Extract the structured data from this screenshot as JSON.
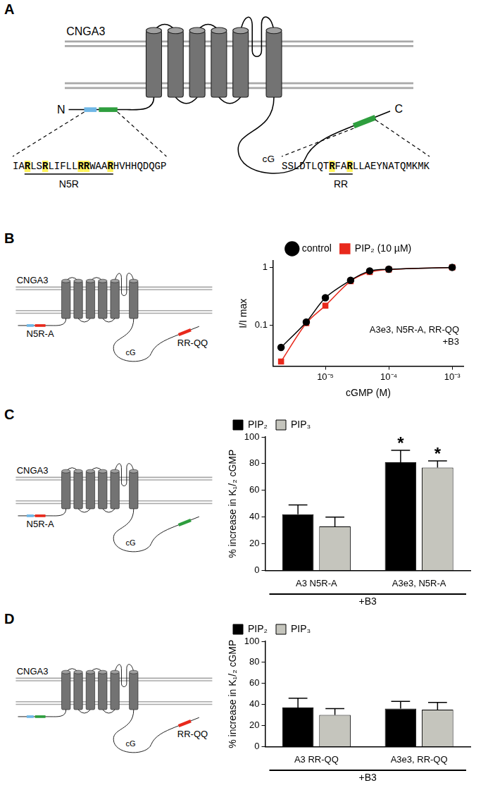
{
  "panel_letters": [
    "A",
    "B",
    "C",
    "D"
  ],
  "diagrams": {
    "A": {
      "protein": "CNGA3",
      "n_label": "N",
      "c_label": "C",
      "domain": "cG",
      "n_pre_box_color": "#6fb7e6",
      "n_box_color": "#2e9e3e",
      "c_box_color": "#2e9e3e",
      "n_sequence": [
        {
          "text": "IA",
          "highlight": false
        },
        {
          "text": "R",
          "highlight": true
        },
        {
          "text": "LS",
          "highlight": false
        },
        {
          "text": "R",
          "highlight": true
        },
        {
          "text": "LIFLL",
          "highlight": false
        },
        {
          "text": "RR",
          "highlight": true
        },
        {
          "text": "WAA",
          "highlight": false
        },
        {
          "text": "R",
          "highlight": true
        },
        {
          "text": "HVHHQDQGP",
          "highlight": false
        }
      ],
      "n_region": "N5R",
      "c_sequence": [
        {
          "text": "SSLDTLQT",
          "highlight": false
        },
        {
          "text": "R",
          "highlight": true
        },
        {
          "text": "FA",
          "highlight": false
        },
        {
          "text": "R",
          "highlight": true
        },
        {
          "text": "LLAEYNATQMKMK",
          "highlight": false
        }
      ],
      "c_region": "RR"
    },
    "B": {
      "protein": "CNGA3",
      "domain": "cG",
      "n_pre_box_color": "#6fb7e6",
      "n_box_color": "#e8291c",
      "c_box_color": "#e8291c",
      "n_mutation": "N5R-A",
      "c_mutation": "RR-QQ"
    },
    "C": {
      "protein": "CNGA3",
      "domain": "cG",
      "n_pre_box_color": "#6fb7e6",
      "n_box_color": "#e8291c",
      "c_box_color": "#2e9e3e",
      "n_mutation": "N5R-A"
    },
    "D": {
      "protein": "CNGA3",
      "domain": "cG",
      "n_pre_box_color": "#6fb7e6",
      "n_box_color": "#2e9e3e",
      "c_box_color": "#e8291c",
      "c_mutation": "RR-QQ"
    }
  },
  "chart_data": [
    {
      "type": "line",
      "log": true,
      "x": [
        2e-06,
        5e-06,
        1e-05,
        2.5e-05,
        5e-05,
        0.0001,
        0.001
      ],
      "series": [
        {
          "name": "control",
          "color": "#000000",
          "marker": "circle",
          "line_style": "solid",
          "values": [
            0.042,
            0.115,
            0.3,
            0.6,
            0.87,
            0.93,
            1.0
          ]
        },
        {
          "name": "PIP₂ (10 µM)",
          "color": "#e8291c",
          "marker": "square",
          "line_style": "solid",
          "values": [
            0.024,
            0.11,
            0.22,
            0.58,
            0.83,
            0.92,
            1.0
          ]
        }
      ],
      "xlim": [
        1.5e-06,
        0.0015
      ],
      "ylim": [
        0.02,
        1.3
      ],
      "xticks": [
        {
          "value": 1e-05,
          "label": "10⁻⁵"
        },
        {
          "value": 0.0001,
          "label": "10⁻⁴"
        },
        {
          "value": 0.001,
          "label": "10⁻³"
        }
      ],
      "yticks": [
        0.1,
        1
      ],
      "x_label": "cGMP (M)",
      "y_label": "I/I max",
      "annotations": [
        "A3e3, N5R-A, RR-QQ",
        "+B3"
      ],
      "legend": "top",
      "grid": false
    },
    {
      "type": "bar",
      "categories": [
        "A3 N5R-A",
        "A3e3, N5R-A"
      ],
      "series": [
        {
          "name": "PIP₂",
          "color": "#000000",
          "values": [
            42,
            81
          ],
          "errors": [
            7,
            9
          ]
        },
        {
          "name": "PIP₃",
          "color": "#c5c5bd",
          "values": [
            33,
            77
          ],
          "errors": [
            7,
            5
          ]
        }
      ],
      "ylim": [
        0,
        100
      ],
      "yticks": [
        0,
        20,
        40,
        60,
        80,
        100
      ],
      "y_label": "% increase in K₁/₂ cGMP",
      "group_label": "+B3",
      "annotations": [
        {
          "text": "*",
          "category": "A3e3, N5R-A",
          "series": "PIP₂"
        },
        {
          "text": "*",
          "category": "A3e3, N5R-A",
          "series": "PIP₃"
        }
      ],
      "legend": "top left",
      "grid": false
    },
    {
      "type": "bar",
      "categories": [
        "A3 RR-QQ",
        "A3e3, RR-QQ"
      ],
      "series": [
        {
          "name": "PIP₂",
          "color": "#000000",
          "values": [
            37,
            36
          ],
          "errors": [
            9,
            7
          ]
        },
        {
          "name": "PIP₃",
          "color": "#c5c5bd",
          "values": [
            30,
            35
          ],
          "errors": [
            6,
            7
          ]
        }
      ],
      "ylim": [
        0,
        100
      ],
      "yticks": [
        0,
        20,
        40,
        60,
        80,
        100
      ],
      "y_label": "% increase in K₁/₂ cGMP",
      "group_label": "+B3",
      "legend": "top left",
      "grid": false
    }
  ]
}
